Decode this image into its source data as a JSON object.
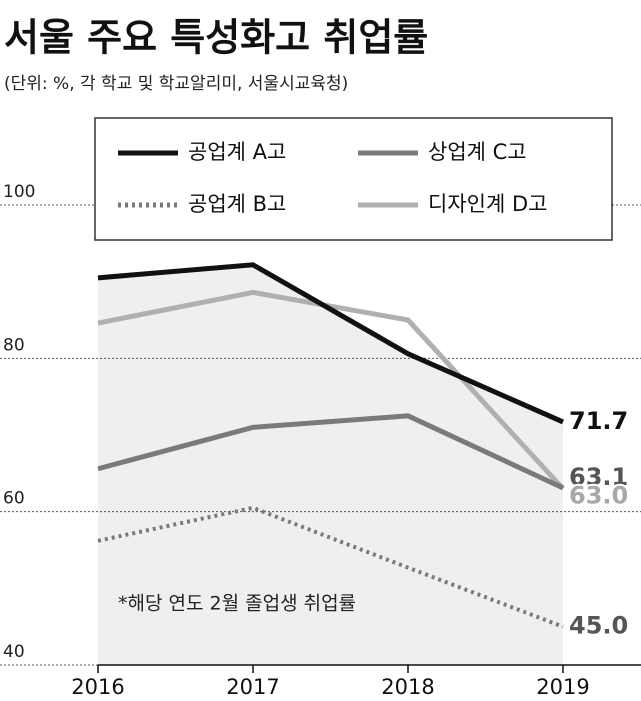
{
  "chart_data": {
    "type": "line",
    "title": "서울 주요 특성화고 취업률",
    "subtitle": "(단위: %, 각 학교 및 학교알리미, 서울시교육청)",
    "annotation": "*해당 연도 2월 졸업생 취업률",
    "categories": [
      "2016",
      "2017",
      "2018",
      "2019"
    ],
    "series": [
      {
        "name": "공업계 A고",
        "color": "#111111",
        "style": "solid",
        "values": [
          90.5,
          92.2,
          80.6,
          71.7
        ],
        "value_labels": [
          null,
          null,
          null,
          "71.7"
        ]
      },
      {
        "name": "상업계 C고",
        "color": "#7a7a7a",
        "style": "solid",
        "values": [
          65.6,
          71.0,
          72.5,
          63.1
        ],
        "value_labels": [
          null,
          null,
          null,
          "63.1"
        ]
      },
      {
        "name": "공업계 B고",
        "color": "#7a7a7a",
        "style": "dotted",
        "values": [
          56.2,
          60.5,
          52.7,
          45.0
        ],
        "value_labels": [
          null,
          null,
          null,
          "45.0"
        ]
      },
      {
        "name": "디자인계 D고",
        "color": "#b0b0b0",
        "style": "solid",
        "values": [
          84.6,
          88.6,
          85.0,
          63.0
        ],
        "value_labels": [
          null,
          null,
          null,
          "63.0"
        ]
      }
    ],
    "ylim": [
      40,
      100
    ],
    "yticks": [
      40,
      60,
      80,
      100
    ],
    "grid": true,
    "shade_series": 0
  }
}
